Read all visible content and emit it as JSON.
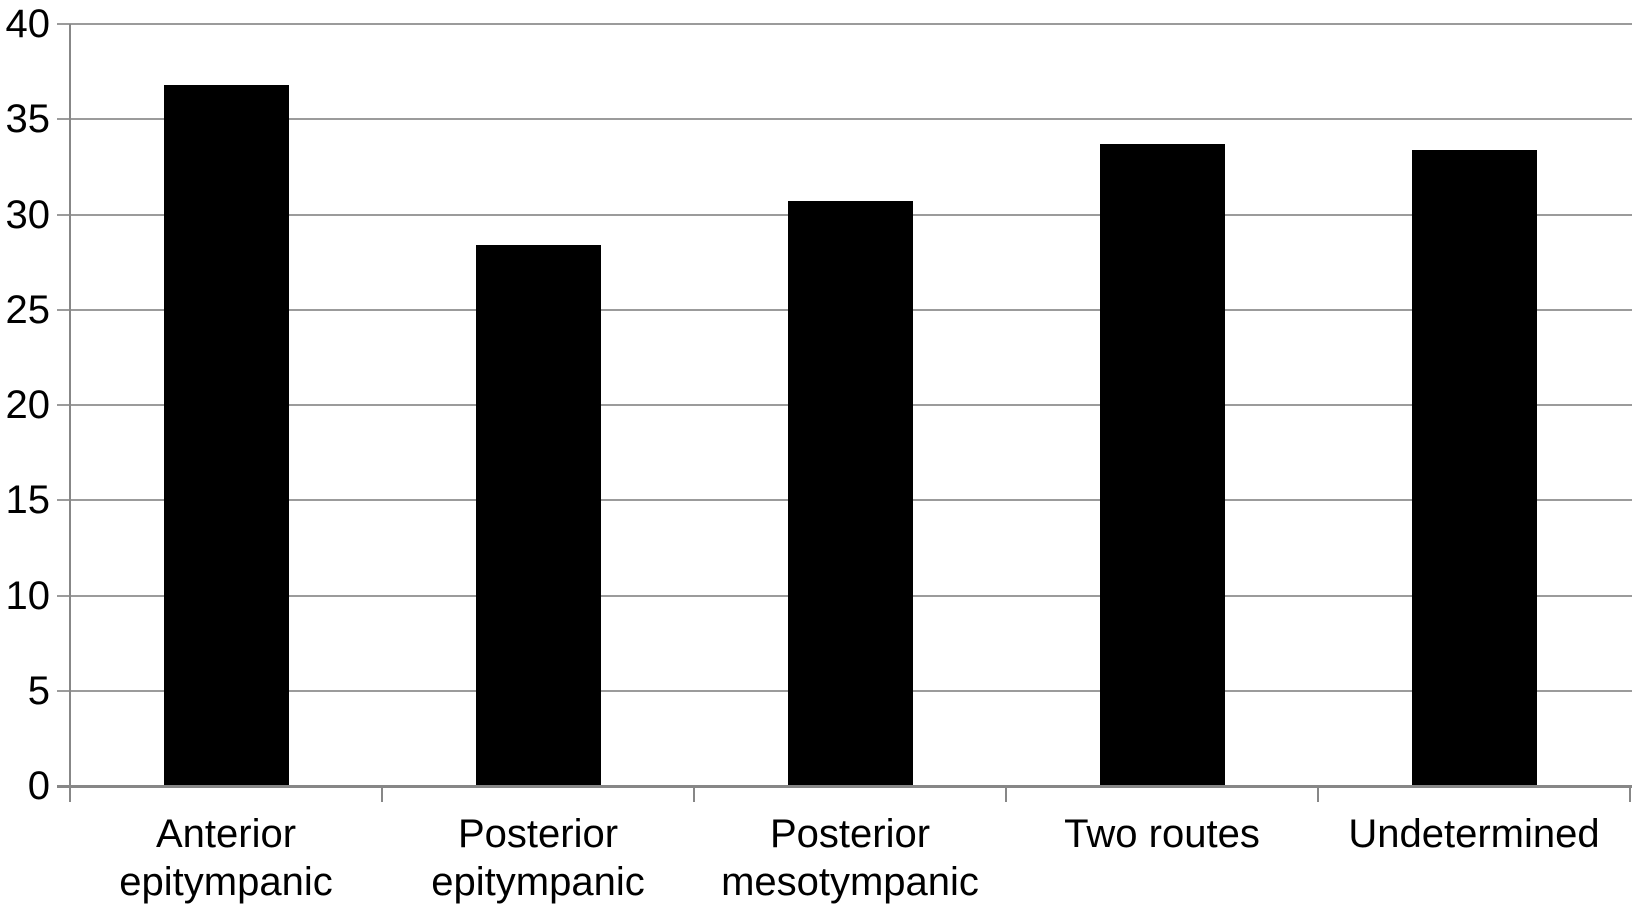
{
  "chart_data": {
    "type": "bar",
    "title": "",
    "xlabel": "",
    "ylabel": "",
    "categories": [
      "Anterior epitympanic",
      "Posterior epitympanic",
      "Posterior mesotympanic",
      "Two routes",
      "Undetermined"
    ],
    "values": [
      36.8,
      28.4,
      30.7,
      33.7,
      33.4
    ],
    "ylim": [
      0,
      40
    ],
    "ytick_step": 5,
    "yticks": [
      0,
      5,
      10,
      15,
      20,
      25,
      30,
      35,
      40
    ],
    "grid": true,
    "legend_position": "none",
    "colors": {
      "bar": "#000000",
      "gridline": "#9b9b9b",
      "axis": "#878787",
      "text": "#000000",
      "background": "#ffffff"
    }
  }
}
